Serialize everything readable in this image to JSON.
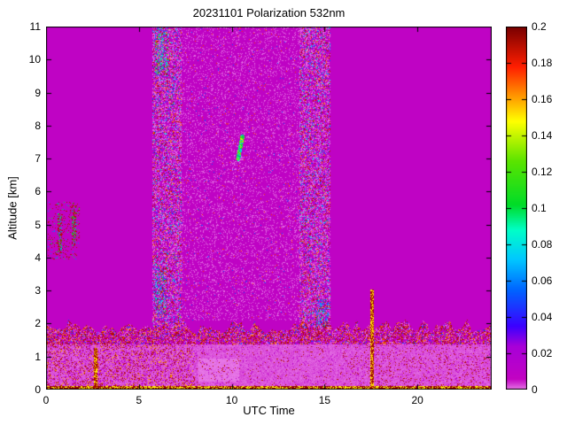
{
  "chart_data": {
    "type": "heatmap",
    "title": "20231101 Polarization 532nm",
    "xlabel": "UTC Time",
    "ylabel": "Altitude [km]",
    "x_range": [
      0,
      24
    ],
    "y_range": [
      0,
      11
    ],
    "x_ticks": [
      0,
      5,
      10,
      15,
      20
    ],
    "y_ticks": [
      0,
      1,
      2,
      3,
      4,
      5,
      6,
      7,
      8,
      9,
      10,
      11
    ],
    "grid": false,
    "legend_position": "colorbar-right",
    "colorbar": {
      "range": [
        0,
        0.2
      ],
      "tick_values": [
        0,
        0.02,
        0.04,
        0.06,
        0.08,
        0.1,
        0.12,
        0.14,
        0.16,
        0.18,
        0.2
      ],
      "tick_labels": [
        "0",
        "0.02",
        "0.04",
        "0.06",
        "0.08",
        "0.1",
        "0.12",
        "0.14",
        "0.16",
        "0.18",
        "0.2"
      ]
    },
    "colormap": [
      [
        0.0,
        "#e87ce8"
      ],
      [
        0.006,
        "#c203c2"
      ],
      [
        0.024,
        "#a800d8"
      ],
      [
        0.035,
        "#3c00ff"
      ],
      [
        0.055,
        "#0064ff"
      ],
      [
        0.072,
        "#00c8ff"
      ],
      [
        0.088,
        "#00ffc8"
      ],
      [
        0.102,
        "#00dc28"
      ],
      [
        0.126,
        "#5ae400"
      ],
      [
        0.148,
        "#ffff00"
      ],
      [
        0.162,
        "#ff9600"
      ],
      [
        0.178,
        "#ff1e00"
      ],
      [
        0.2,
        "#780000"
      ]
    ],
    "background_value": 0.008,
    "regions": [
      {
        "name": "interior-haze",
        "type": "speckle",
        "t": [
          7.25,
          13.65
        ],
        "h": [
          2.1,
          11
        ],
        "density": 0.18,
        "values": [
          [
            0.001,
            0.8
          ],
          [
            0.013,
            0.13
          ],
          [
            0.05,
            0.03
          ],
          [
            0.175,
            0.04
          ]
        ]
      },
      {
        "name": "noise-band-1",
        "type": "speckle",
        "t": [
          5.7,
          7.3
        ],
        "h": [
          1.9,
          11
        ],
        "density": 0.62,
        "values": [
          [
            0.001,
            0.42
          ],
          [
            0.013,
            0.28
          ],
          [
            0.19,
            0.11
          ],
          [
            0.165,
            0.06
          ],
          [
            0.05,
            0.07
          ],
          [
            0.08,
            0.06
          ]
        ]
      },
      {
        "name": "noise-band-2",
        "type": "speckle",
        "t": [
          13.6,
          15.3
        ],
        "h": [
          1.9,
          11
        ],
        "density": 0.62,
        "values": [
          [
            0.001,
            0.42
          ],
          [
            0.013,
            0.28
          ],
          [
            0.19,
            0.11
          ],
          [
            0.165,
            0.06
          ],
          [
            0.05,
            0.07
          ],
          [
            0.08,
            0.06
          ]
        ]
      },
      {
        "name": "cluster-top-band1",
        "type": "speckle",
        "t": [
          5.85,
          6.55
        ],
        "h": [
          9.5,
          11
        ],
        "density": 0.28,
        "values": [
          [
            0.09,
            0.35
          ],
          [
            0.06,
            0.3
          ],
          [
            0.12,
            0.2
          ],
          [
            0.19,
            0.15
          ]
        ]
      },
      {
        "name": "cluster-low-band1",
        "type": "speckle",
        "t": [
          5.85,
          6.45
        ],
        "h": [
          2.3,
          3.7
        ],
        "density": 0.32,
        "values": [
          [
            0.05,
            0.35
          ],
          [
            0.08,
            0.25
          ],
          [
            0.19,
            0.25
          ],
          [
            0.12,
            0.15
          ]
        ]
      },
      {
        "name": "cluster-low-band2",
        "type": "speckle",
        "t": [
          14.55,
          15.2
        ],
        "h": [
          1.9,
          2.75
        ],
        "density": 0.3,
        "values": [
          [
            0.07,
            0.4
          ],
          [
            0.05,
            0.3
          ],
          [
            0.1,
            0.15
          ],
          [
            0.19,
            0.15
          ]
        ]
      },
      {
        "name": "boundary-layer",
        "type": "fill",
        "t": [
          0,
          24
        ],
        "h": [
          0.1,
          1.38
        ],
        "value": 0.002,
        "jitter": 0.0015
      },
      {
        "name": "pink-patch",
        "type": "fill",
        "t": [
          8.2,
          10.4
        ],
        "h": [
          0.25,
          0.95
        ],
        "value": 0.0005,
        "jitter": 0.0008
      },
      {
        "name": "bl-speckle-left",
        "type": "speckle",
        "t": [
          0,
          8
        ],
        "h": [
          0.12,
          1.38
        ],
        "density": 0.32,
        "values": [
          [
            0.19,
            0.38
          ],
          [
            0.16,
            0.14
          ],
          [
            0.012,
            0.48
          ]
        ]
      },
      {
        "name": "bl-speckle-mid",
        "type": "speckle",
        "t": [
          8,
          16
        ],
        "h": [
          0.12,
          1.38
        ],
        "density": 0.07,
        "values": [
          [
            0.19,
            0.4
          ],
          [
            0.012,
            0.6
          ]
        ]
      },
      {
        "name": "bl-speckle-right",
        "type": "speckle",
        "t": [
          16,
          24
        ],
        "h": [
          0.12,
          1.38
        ],
        "density": 0.13,
        "values": [
          [
            0.19,
            0.5
          ],
          [
            0.012,
            0.5
          ]
        ]
      },
      {
        "name": "aerosol-top-band",
        "type": "layer",
        "t": [
          0,
          24
        ],
        "h": [
          1.38,
          1.92
        ],
        "wiggle": 0.22,
        "density": 0.72,
        "values": [
          [
            0.19,
            0.3
          ],
          [
            0.165,
            0.12
          ],
          [
            0.012,
            0.3
          ],
          [
            0.001,
            0.23
          ],
          [
            0.05,
            0.05
          ]
        ]
      },
      {
        "name": "ground-line",
        "type": "speckle",
        "t": [
          0,
          24
        ],
        "h": [
          0,
          0.13
        ],
        "density": 1,
        "values": [
          [
            0.196,
            0.55
          ],
          [
            0.15,
            0.45
          ]
        ]
      },
      {
        "name": "dark-stripe-0240",
        "type": "speckle",
        "t": [
          2.55,
          2.76
        ],
        "h": [
          0,
          1.28
        ],
        "density": 1,
        "values": [
          [
            0.193,
            0.6
          ],
          [
            0.152,
            0.4
          ]
        ]
      },
      {
        "name": "dark-stripe-1730",
        "type": "speckle",
        "t": [
          17.45,
          17.64
        ],
        "h": [
          0,
          3.05
        ],
        "density": 1,
        "values": [
          [
            0.193,
            0.55
          ],
          [
            0.152,
            0.45
          ]
        ]
      },
      {
        "name": "left-sparse-specks",
        "type": "speckle",
        "t": [
          0.05,
          1.8
        ],
        "h": [
          3.95,
          5.7
        ],
        "density": 0.1,
        "values": [
          [
            0.19,
            0.7
          ],
          [
            0.1,
            0.15
          ],
          [
            0.06,
            0.15
          ]
        ]
      },
      {
        "name": "left-streak-1",
        "type": "speckle",
        "t": [
          0.6,
          0.84
        ],
        "h": [
          4.15,
          5.35
        ],
        "density": 0.55,
        "values": [
          [
            0.19,
            0.6
          ],
          [
            0.105,
            0.2
          ],
          [
            0.065,
            0.2
          ]
        ]
      },
      {
        "name": "left-streak-2",
        "type": "speckle",
        "t": [
          1.36,
          1.6
        ],
        "h": [
          4.35,
          5.6
        ],
        "density": 0.55,
        "values": [
          [
            0.19,
            0.55
          ],
          [
            0.105,
            0.25
          ],
          [
            0.065,
            0.2
          ]
        ]
      },
      {
        "name": "green-feature",
        "type": "streak",
        "t1": 10.55,
        "h1": 7.68,
        "t2": 10.32,
        "h2": 7.0,
        "width": 2.3,
        "value": 0.1,
        "jitter": 0.045
      }
    ]
  }
}
